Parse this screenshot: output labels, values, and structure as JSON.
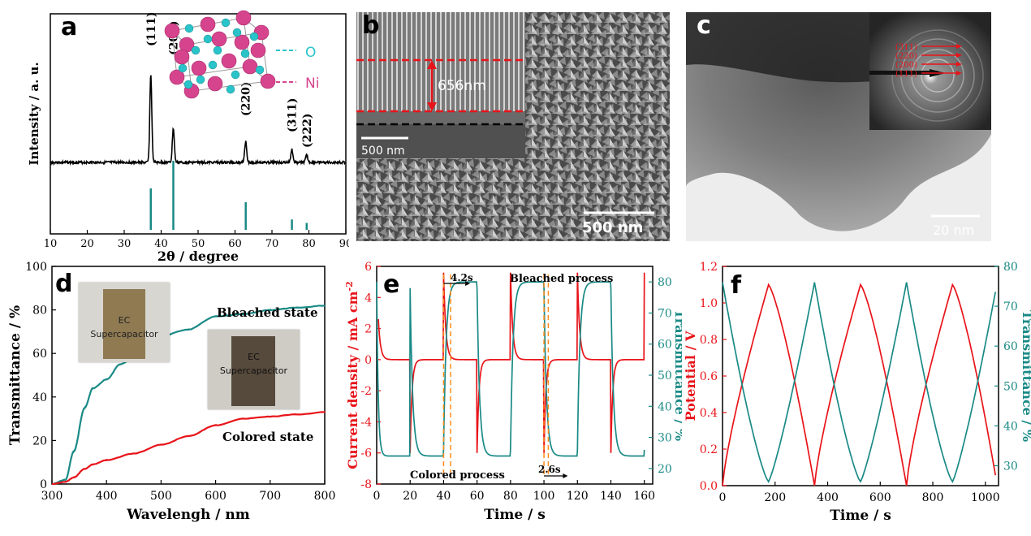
{
  "colors": {
    "teal": "#1a8a86",
    "red": "#e8141a",
    "orange": "#ff8c1a",
    "magenta": "#d6448e",
    "cyan": "#29c3c9"
  },
  "panel_a": {
    "label": "a",
    "ylabel": "Intensity / a. u.",
    "xlabel": "2θ / degree",
    "xticks": [
      "10",
      "20",
      "30",
      "40",
      "50",
      "60",
      "70",
      "80",
      "90"
    ],
    "peaks": [
      "(111)",
      "(200)",
      "(220)",
      "(311)",
      "(222)"
    ],
    "legend_o": "O",
    "legend_ni": "Ni"
  },
  "panel_b": {
    "label": "b",
    "inset_dim": "656nm",
    "inset_scale": "500 nm",
    "scale": "500 nm"
  },
  "panel_c": {
    "label": "c",
    "rings": [
      "(311)",
      "(220)",
      "(200)",
      "(111)"
    ],
    "scale": "20 nm"
  },
  "panel_d": {
    "label": "d",
    "ylabel": "Transmittance / %",
    "xlabel": "Wavelengh / nm",
    "xticks": [
      "300",
      "400",
      "500",
      "600",
      "700",
      "800"
    ],
    "yticks": [
      "0",
      "20",
      "40",
      "60",
      "80",
      "100"
    ],
    "bleached": "Bleached state",
    "colored": "Colored state",
    "photo1_l1": "EC",
    "photo1_l2": "Supercapacitor",
    "photo2_l1": "EC",
    "photo2_l2": "Supercapacitor"
  },
  "panel_e": {
    "label": "e",
    "ylabel_left": "Current density / mA cm",
    "ylabel_left_sup": "-2",
    "ylabel_right": "Transmittance / %",
    "xlabel": "Time / s",
    "xticks": [
      "0",
      "20",
      "40",
      "60",
      "80",
      "100",
      "120",
      "140",
      "160"
    ],
    "yticks_left": [
      "-8",
      "-6",
      "-4",
      "-2",
      "0",
      "2",
      "4",
      "6"
    ],
    "yticks_right": [
      "20",
      "30",
      "40",
      "50",
      "60",
      "70",
      "80"
    ],
    "t_bleach": "4.2s",
    "t_color": "2.6s",
    "bleached_process": "Bleached process",
    "colored_process": "Colored process"
  },
  "panel_f": {
    "label": "f",
    "ylabel_left": "Potential / V",
    "ylabel_right": "Transmittance / %",
    "xlabel": "Time / s",
    "xticks": [
      "0",
      "200",
      "400",
      "600",
      "800",
      "1000"
    ],
    "yticks_left": [
      "0.0",
      "0.2",
      "0.4",
      "0.6",
      "0.8",
      "1.0",
      "1.2"
    ],
    "yticks_right": [
      "30",
      "40",
      "50",
      "60",
      "70",
      "80"
    ]
  },
  "chart_data": [
    {
      "type": "line",
      "panel": "a",
      "xlabel": "2θ / degree",
      "ylabel": "Intensity / a. u.",
      "xlim": [
        10,
        90
      ],
      "series": [
        {
          "values": []
        }
      ],
      "peaks": [
        {
          "x": 37.2,
          "label": "(111)"
        },
        {
          "x": 43.3,
          "label": "(200)"
        },
        {
          "x": 62.9,
          "label": "(220)"
        },
        {
          "x": 75.4,
          "label": "(311)"
        },
        {
          "x": 79.4,
          "label": "(222)"
        }
      ],
      "reference_sticks": [
        {
          "x": 37.2,
          "h": 0.6
        },
        {
          "x": 43.3,
          "h": 1.0
        },
        {
          "x": 62.9,
          "h": 0.4
        },
        {
          "x": 75.4,
          "h": 0.15
        },
        {
          "x": 79.4,
          "h": 0.1
        }
      ]
    },
    {
      "type": "line",
      "panel": "d",
      "xlabel": "Wavelengh / nm",
      "ylabel": "Transmittance / %",
      "xlim": [
        300,
        800
      ],
      "ylim": [
        0,
        100
      ],
      "series": [
        {
          "name": "Bleached state",
          "x": [
            300,
            325,
            340,
            360,
            375,
            400,
            425,
            450,
            475,
            500,
            550,
            600,
            650,
            700,
            750,
            800
          ],
          "values": [
            0,
            2,
            15,
            35,
            44,
            48,
            55,
            58,
            64,
            68,
            71,
            77,
            78,
            80,
            81,
            82
          ]
        },
        {
          "name": "Colored state",
          "x": [
            300,
            325,
            340,
            360,
            375,
            400,
            450,
            500,
            550,
            600,
            650,
            700,
            750,
            800
          ],
          "values": [
            0,
            1,
            3,
            7,
            9,
            11,
            14,
            18,
            22,
            27,
            30,
            31,
            32,
            33
          ]
        }
      ]
    },
    {
      "type": "line",
      "panel": "e",
      "xlabel": "Time / s",
      "xlim": [
        0,
        160
      ],
      "series": [
        {
          "name": "Current density",
          "axis": "left",
          "ylim": [
            -8,
            6
          ],
          "period": 20,
          "peak_bleach": 5.6,
          "peak_color": -6.0,
          "rest": 0
        },
        {
          "name": "Transmittance",
          "axis": "right",
          "ylim": [
            15,
            85
          ],
          "high": 80,
          "low": 24
        }
      ],
      "annotations": [
        {
          "x": [
            40,
            44.2
          ],
          "label": "4.2s"
        },
        {
          "x": 100,
          "label": "2.6s"
        }
      ]
    },
    {
      "type": "line",
      "panel": "f",
      "xlabel": "Time / s",
      "xlim": [
        0,
        1050
      ],
      "series": [
        {
          "name": "Potential",
          "axis": "left",
          "ylim": [
            0,
            1.2
          ],
          "x": [
            0,
            175,
            350,
            525,
            700,
            875,
            1045
          ],
          "values": [
            0,
            1.1,
            0,
            1.1,
            0,
            1.1,
            0
          ]
        },
        {
          "name": "Transmittance",
          "axis": "right",
          "ylim": [
            25,
            80
          ],
          "x": [
            0,
            175,
            350,
            525,
            700,
            875,
            1045
          ],
          "values": [
            76,
            26,
            76,
            26,
            76,
            26,
            76
          ]
        }
      ]
    }
  ]
}
